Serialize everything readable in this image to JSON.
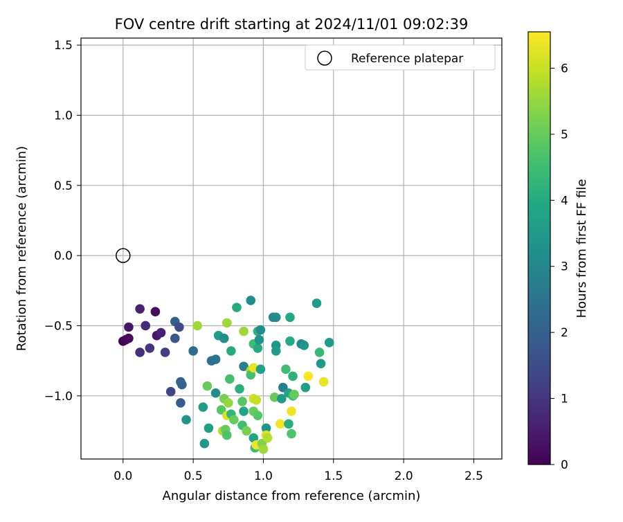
{
  "chart_data": {
    "type": "scatter",
    "title": "FOV centre drift starting at 2024/11/01 09:02:39",
    "xlabel": "Angular distance from reference (arcmin)",
    "ylabel": "Rotation from reference (arcmin)",
    "xlim": [
      -0.3,
      2.7
    ],
    "ylim": [
      -1.45,
      1.55
    ],
    "x_ticks": [
      0.0,
      0.5,
      1.0,
      1.5,
      2.0,
      2.5
    ],
    "x_tick_labels": [
      "0.0",
      "0.5",
      "1.0",
      "1.5",
      "2.0",
      "2.5"
    ],
    "y_ticks": [
      1.5,
      1.0,
      0.5,
      0.0,
      -0.5,
      -1.0
    ],
    "y_tick_labels": [
      "1.5",
      "1.0",
      "0.5",
      "0.0",
      "−0.5",
      "−1.0"
    ],
    "grid": true,
    "legend": {
      "placement": "top-right",
      "entries": [
        {
          "label": "Reference platepar",
          "marker": "open-circle"
        }
      ]
    },
    "reference_point": {
      "x": 0.0,
      "y": 0.0
    },
    "colorbar": {
      "label": "Hours from first FF file",
      "colormap": "viridis",
      "range": [
        0,
        6.55
      ],
      "ticks": [
        0,
        1,
        2,
        3,
        4,
        5,
        6
      ],
      "tick_labels": [
        "0",
        "1",
        "2",
        "3",
        "4",
        "5",
        "6"
      ]
    },
    "series": [
      {
        "points": [
          [
            0.0,
            -0.61,
            0.0
          ],
          [
            0.02,
            -0.6,
            0.1
          ],
          [
            0.04,
            -0.59,
            0.2
          ],
          [
            0.04,
            -0.51,
            0.4
          ],
          [
            0.12,
            -0.38,
            0.6
          ],
          [
            0.23,
            -0.4,
            0.2
          ],
          [
            0.16,
            -0.5,
            0.8
          ],
          [
            0.24,
            -0.57,
            0.4
          ],
          [
            0.27,
            -0.55,
            0.6
          ],
          [
            0.12,
            -0.69,
            0.9
          ],
          [
            0.19,
            -0.66,
            1.0
          ],
          [
            0.3,
            -0.69,
            1.2
          ],
          [
            0.37,
            -0.59,
            1.8
          ],
          [
            0.37,
            -0.47,
            2.0
          ],
          [
            0.4,
            -0.51,
            1.5
          ],
          [
            0.34,
            -0.97,
            1.3
          ],
          [
            0.41,
            -0.9,
            2.0
          ],
          [
            0.42,
            -0.92,
            2.1
          ],
          [
            0.41,
            -1.05,
            1.9
          ],
          [
            0.5,
            -0.68,
            2.3
          ],
          [
            0.45,
            -1.17,
            3.4
          ],
          [
            0.57,
            -1.08,
            3.6
          ],
          [
            0.58,
            -1.34,
            3.5
          ],
          [
            0.61,
            -1.23,
            3.7
          ],
          [
            0.63,
            -0.75,
            2.4
          ],
          [
            0.66,
            -0.74,
            2.5
          ],
          [
            0.66,
            -0.98,
            3.2
          ],
          [
            0.68,
            -0.57,
            3.6
          ],
          [
            0.72,
            -0.59,
            3.2
          ],
          [
            0.6,
            -0.93,
            5.0
          ],
          [
            0.53,
            -0.5,
            5.6
          ],
          [
            0.74,
            -0.48,
            5.6
          ],
          [
            0.77,
            -0.68,
            4.0
          ],
          [
            0.76,
            -0.88,
            4.6
          ],
          [
            0.7,
            -1.1,
            4.8
          ],
          [
            0.71,
            -1.25,
            5.8
          ],
          [
            0.73,
            -1.24,
            5.0
          ],
          [
            0.74,
            -1.28,
            4.7
          ],
          [
            0.72,
            -1.02,
            5.2
          ],
          [
            0.74,
            -1.14,
            6.2
          ],
          [
            0.75,
            -1.05,
            5.5
          ],
          [
            0.77,
            -1.13,
            4.3
          ],
          [
            0.79,
            -1.17,
            5.0
          ],
          [
            0.81,
            -0.37,
            4.0
          ],
          [
            0.83,
            -0.95,
            4.1
          ],
          [
            0.85,
            -1.04,
            4.8
          ],
          [
            0.85,
            -1.21,
            4.5
          ],
          [
            0.86,
            -0.79,
            2.8
          ],
          [
            0.86,
            -1.11,
            3.8
          ],
          [
            0.86,
            -0.54,
            5.6
          ],
          [
            0.88,
            -1.25,
            5.2
          ],
          [
            0.91,
            -0.32,
            3.2
          ],
          [
            0.91,
            -0.82,
            5.8
          ],
          [
            0.91,
            -0.85,
            4.6
          ],
          [
            0.93,
            -0.63,
            4.5
          ],
          [
            0.93,
            -0.8,
            6.3
          ],
          [
            0.93,
            -1.02,
            6.1
          ],
          [
            0.93,
            -1.11,
            5.0
          ],
          [
            0.93,
            -1.3,
            3.8
          ],
          [
            0.94,
            -1.37,
            4.4
          ],
          [
            0.95,
            -1.03,
            6.0
          ],
          [
            0.95,
            -1.35,
            6.4
          ],
          [
            0.96,
            -0.54,
            4.2
          ],
          [
            0.96,
            -0.66,
            4.0
          ],
          [
            0.96,
            -1.14,
            4.8
          ],
          [
            0.97,
            -0.6,
            3.3
          ],
          [
            0.98,
            -0.53,
            3.1
          ],
          [
            0.98,
            -0.81,
            3.7
          ],
          [
            0.99,
            -1.34,
            5.3
          ],
          [
            1.0,
            -1.38,
            5.6
          ],
          [
            1.02,
            -1.23,
            3.4
          ],
          [
            1.02,
            -1.28,
            6.2
          ],
          [
            1.03,
            -1.3,
            5.8
          ],
          [
            1.07,
            -0.44,
            3.0
          ],
          [
            1.08,
            -1.01,
            5.0
          ],
          [
            1.09,
            -0.44,
            3.1
          ],
          [
            1.09,
            -0.64,
            3.4
          ],
          [
            1.09,
            -0.68,
            3.6
          ],
          [
            1.12,
            -1.2,
            6.4
          ],
          [
            1.13,
            -1.02,
            3.6
          ],
          [
            1.14,
            -0.94,
            2.8
          ],
          [
            1.16,
            -0.81,
            4.5
          ],
          [
            1.18,
            -0.98,
            3.8
          ],
          [
            1.18,
            -1.2,
            4.1
          ],
          [
            1.19,
            -0.44,
            3.9
          ],
          [
            1.19,
            -0.61,
            4.0
          ],
          [
            1.2,
            -1.27,
            4.7
          ],
          [
            1.2,
            -1.11,
            6.4
          ],
          [
            1.21,
            -0.86,
            4.2
          ],
          [
            1.21,
            -1.0,
            4.4
          ],
          [
            1.22,
            -0.99,
            5.0
          ],
          [
            1.27,
            -0.63,
            3.1
          ],
          [
            1.29,
            -0.64,
            3.4
          ],
          [
            1.3,
            -0.94,
            3.7
          ],
          [
            1.32,
            -0.86,
            6.5
          ],
          [
            1.38,
            -0.34,
            3.6
          ],
          [
            1.4,
            -0.69,
            4.4
          ],
          [
            1.41,
            -0.77,
            3.5
          ],
          [
            1.43,
            -0.9,
            6.3
          ],
          [
            1.47,
            -0.62,
            3.6
          ]
        ]
      }
    ]
  }
}
